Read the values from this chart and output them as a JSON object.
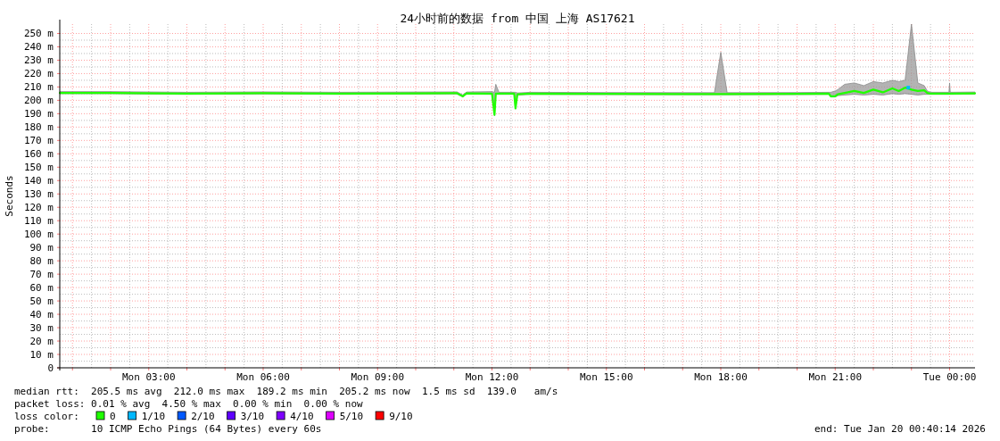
{
  "chart_data": {
    "type": "line",
    "title": "24小时前的数据 from 中国 上海 AS17621",
    "ylabel": "Seconds",
    "xlim": [
      "2026-01-19T00:40",
      "2026-01-20T00:40"
    ],
    "xticks": [
      {
        "value": "2026-01-19T01:00",
        "label": null
      },
      {
        "value": "2026-01-19T02:00",
        "label": null
      },
      {
        "value": "2026-01-19T03:00",
        "label": "Mon 03:00"
      },
      {
        "value": "2026-01-19T04:00",
        "label": null
      },
      {
        "value": "2026-01-19T05:00",
        "label": null
      },
      {
        "value": "2026-01-19T06:00",
        "label": "Mon 06:00"
      },
      {
        "value": "2026-01-19T07:00",
        "label": null
      },
      {
        "value": "2026-01-19T08:00",
        "label": null
      },
      {
        "value": "2026-01-19T09:00",
        "label": "Mon 09:00"
      },
      {
        "value": "2026-01-19T10:00",
        "label": null
      },
      {
        "value": "2026-01-19T11:00",
        "label": null
      },
      {
        "value": "2026-01-19T12:00",
        "label": "Mon 12:00"
      },
      {
        "value": "2026-01-19T13:00",
        "label": null
      },
      {
        "value": "2026-01-19T14:00",
        "label": null
      },
      {
        "value": "2026-01-19T15:00",
        "label": "Mon 15:00"
      },
      {
        "value": "2026-01-19T16:00",
        "label": null
      },
      {
        "value": "2026-01-19T17:00",
        "label": null
      },
      {
        "value": "2026-01-19T18:00",
        "label": "Mon 18:00"
      },
      {
        "value": "2026-01-19T19:00",
        "label": null
      },
      {
        "value": "2026-01-19T20:00",
        "label": null
      },
      {
        "value": "2026-01-19T21:00",
        "label": "Mon 21:00"
      },
      {
        "value": "2026-01-19T22:00",
        "label": null
      },
      {
        "value": "2026-01-19T23:00",
        "label": null
      },
      {
        "value": "2026-01-20T00:00",
        "label": "Tue 00:00"
      }
    ],
    "ylim": [
      0,
      257
    ],
    "yticks": [
      0,
      {
        "value": 10,
        "label": "10 m"
      },
      {
        "value": 20,
        "label": "20 m"
      },
      {
        "value": 30,
        "label": "30 m"
      },
      {
        "value": 40,
        "label": "40 m"
      },
      {
        "value": 50,
        "label": "50 m"
      },
      {
        "value": 60,
        "label": "60 m"
      },
      {
        "value": 70,
        "label": "70 m"
      },
      {
        "value": 80,
        "label": "80 m"
      },
      {
        "value": 90,
        "label": "90 m"
      },
      {
        "value": 100,
        "label": "100 m"
      },
      {
        "value": 110,
        "label": "110 m"
      },
      {
        "value": 120,
        "label": "120 m"
      },
      {
        "value": 130,
        "label": "130 m"
      },
      {
        "value": 140,
        "label": "140 m"
      },
      {
        "value": 150,
        "label": "150 m"
      },
      {
        "value": 160,
        "label": "160 m"
      },
      {
        "value": 170,
        "label": "170 m"
      },
      {
        "value": 180,
        "label": "180 m"
      },
      {
        "value": 190,
        "label": "190 m"
      },
      {
        "value": 200,
        "label": "200 m"
      },
      {
        "value": 210,
        "label": "210 m"
      },
      {
        "value": 220,
        "label": "220 m"
      },
      {
        "value": 230,
        "label": "230 m"
      },
      {
        "value": 240,
        "label": "240 m"
      },
      {
        "value": 250,
        "label": "250 m"
      }
    ],
    "grid": true,
    "legend": "bottom",
    "legend_title": "loss color:",
    "marker": "none",
    "line_style": "solid",
    "series": [
      {
        "name": "0",
        "color": "#20ff00",
        "x": [
          "2026-01-19T00:40",
          "2026-01-19T02:00",
          "2026-01-19T04:00",
          "2026-01-19T06:00",
          "2026-01-19T08:00",
          "2026-01-19T10:00",
          "2026-01-19T11:05",
          "2026-01-19T11:14",
          "2026-01-19T11:20",
          "2026-01-19T12:00",
          "2026-01-19T12:04",
          "2026-01-19T12:06",
          "2026-01-19T12:11",
          "2026-01-19T12:35",
          "2026-01-19T12:37",
          "2026-01-19T12:40",
          "2026-01-19T13:00",
          "2026-01-19T15:00",
          "2026-01-19T17:50",
          "2026-01-19T18:00",
          "2026-01-19T18:10",
          "2026-01-19T20:00",
          "2026-01-19T20:50",
          "2026-01-19T20:53",
          "2026-01-19T21:00",
          "2026-01-19T21:04",
          "2026-01-19T21:15",
          "2026-01-19T21:30",
          "2026-01-19T21:45",
          "2026-01-19T22:00",
          "2026-01-19T22:15",
          "2026-01-19T22:30",
          "2026-01-19T22:40",
          "2026-01-19T22:50",
          "2026-01-19T23:00",
          "2026-01-19T23:10",
          "2026-01-19T23:20",
          "2026-01-19T23:25",
          "2026-01-19T23:30",
          "2026-01-19T23:59",
          "2026-01-20T00:00",
          "2026-01-20T00:01",
          "2026-01-20T00:40"
        ],
        "values": [
          205.5,
          205.5,
          205,
          205.3,
          205,
          205.2,
          205.3,
          203,
          205.2,
          205,
          189.2,
          205,
          205,
          205,
          194,
          204.5,
          205,
          204.8,
          204.7,
          204.7,
          204.7,
          204.8,
          205,
          203,
          203,
          204.5,
          205.5,
          207,
          205.5,
          208,
          206,
          209,
          207,
          209.5,
          208,
          207,
          207.5,
          205.5,
          205,
          205,
          205,
          205,
          205.2
        ],
        "lower": [
          205,
          205,
          204.5,
          204.8,
          204.5,
          204.7,
          204.8,
          202.5,
          204.7,
          204.5,
          188.5,
          204.5,
          204.5,
          204.5,
          193.5,
          204,
          204.5,
          204.3,
          204.2,
          204.2,
          204.2,
          204.3,
          204.5,
          202.5,
          202.5,
          203.5,
          204,
          204.5,
          204,
          204.5,
          204,
          205,
          204.5,
          205,
          204.5,
          204,
          204.5,
          204.5,
          204.5,
          204.5,
          204.5,
          204.5,
          204.7
        ],
        "upper": [
          206.5,
          206.5,
          206,
          206.3,
          206,
          206.2,
          206.3,
          204,
          206.2,
          206.5,
          206,
          212,
          206,
          206,
          206,
          205.5,
          206,
          205.8,
          205.7,
          236,
          205.7,
          205.8,
          206,
          206,
          207,
          208,
          212,
          213,
          211,
          214,
          213,
          215,
          214,
          215,
          257,
          213,
          211,
          207,
          206,
          206,
          213,
          206,
          206.2
        ]
      },
      {
        "name": "1/10",
        "type": "scatter",
        "color": "#00b8ff",
        "marker": "square",
        "x": [
          "2026-01-19T22:55"
        ],
        "values": [
          209.5
        ]
      },
      {
        "name": "2/10",
        "type": "line",
        "color": "#0059ff"
      },
      {
        "name": "3/10",
        "type": "line",
        "color": "#5e00ff"
      },
      {
        "name": "4/10",
        "type": "line",
        "color": "#7e00ff"
      },
      {
        "name": "5/10",
        "type": "line",
        "color": "#dd00ff"
      },
      {
        "name": "9/10",
        "type": "line",
        "color": "#ff0000"
      }
    ],
    "annotations": [
      "median rtt:  205.5 ms avg  212.0 ms max  189.2 ms min  205.2 ms now  1.5 ms sd  139.0   am/s",
      "packet loss: 0.01 % avg  4.50 % max  0.00 % min  0.00 % now",
      "probe:       10 ICMP Echo Pings (64 Bytes) every 60s",
      "end: Tue Jan 20 00:40:14 2026"
    ]
  }
}
